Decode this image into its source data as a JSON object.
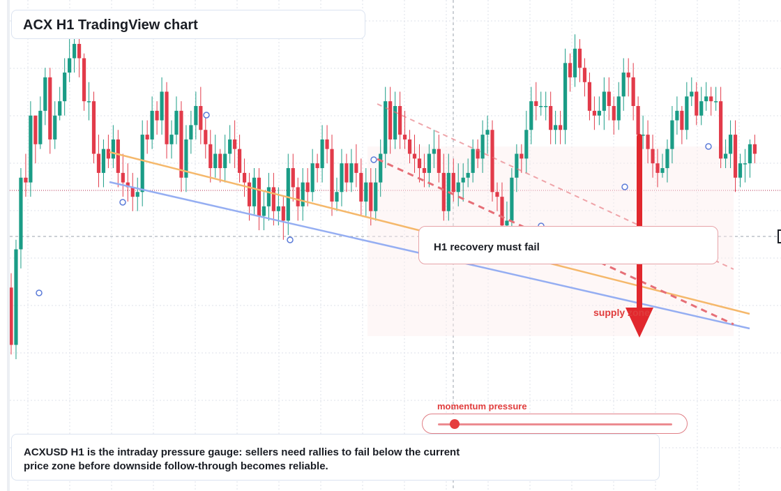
{
  "header": {
    "title": "ACX H1 TradingView chart"
  },
  "callout": {
    "text": "H1 recovery must fail"
  },
  "zone_label": "supply zone",
  "gauge": {
    "label": "momentum pressure",
    "level": 0.07
  },
  "note": {
    "text": "ACXUSD H1 is the intraday pressure gauge: sellers need rallies to fail below the current price zone before downside follow-through becomes reliable."
  },
  "colors": {
    "up": "#1a9c86",
    "down": "#e23b4a",
    "trend_orange": "#f5b86b",
    "trend_blue": "#95aef2",
    "trend_red": "#e66e76",
    "arrow": "#e1272d"
  },
  "chart_data": {
    "type": "candlestick",
    "title": "ACX H1 TradingView chart",
    "symbol": "ACXUSD",
    "timeframe": "H1",
    "ylim": [
      0,
      100
    ],
    "annotations": [
      "H1 recovery must fail",
      "supply zone",
      "momentum pressure"
    ],
    "candles": {
      "open": [
        42,
        30,
        50,
        65,
        64,
        78,
        72,
        79,
        86,
        73,
        78,
        81,
        87,
        90,
        93,
        90,
        81,
        81,
        70,
        66,
        71,
        69,
        73,
        66,
        64,
        63,
        61,
        62,
        74,
        73,
        79,
        77,
        83,
        72,
        74,
        79,
        65,
        73,
        76,
        80,
        75,
        72,
        67,
        70,
        67,
        70,
        73,
        71,
        66,
        64,
        59,
        65,
        57,
        59,
        63,
        58,
        59,
        56,
        67,
        63,
        59,
        64,
        62,
        68,
        67,
        73,
        71,
        60,
        62,
        68,
        64,
        68,
        66,
        60,
        64,
        58,
        64,
        70,
        81,
        73,
        80,
        74,
        73,
        70,
        69,
        67,
        66,
        70,
        71,
        66,
        58,
        66,
        62,
        64,
        65,
        66,
        71,
        69,
        74,
        75,
        62,
        61,
        55,
        56,
        65,
        70,
        69,
        75,
        81,
        80,
        80,
        80,
        75,
        76,
        75,
        89,
        86,
        92,
        88,
        85,
        79,
        78,
        79,
        83,
        80,
        77,
        82,
        87,
        86,
        80,
        74,
        74,
        71,
        68,
        66,
        67,
        71,
        77,
        79,
        75,
        82,
        83,
        78,
        81,
        82,
        81,
        81,
        69,
        70,
        74,
        65,
        68,
        68,
        72
      ],
      "close": [
        30,
        50,
        65,
        64,
        78,
        72,
        79,
        86,
        73,
        78,
        81,
        87,
        90,
        93,
        90,
        81,
        81,
        70,
        66,
        71,
        69,
        73,
        66,
        64,
        63,
        61,
        62,
        74,
        73,
        79,
        77,
        83,
        72,
        74,
        79,
        65,
        73,
        76,
        80,
        75,
        72,
        67,
        70,
        67,
        70,
        73,
        71,
        66,
        64,
        59,
        65,
        57,
        59,
        63,
        58,
        59,
        56,
        67,
        63,
        59,
        64,
        62,
        68,
        67,
        73,
        71,
        60,
        62,
        68,
        64,
        68,
        66,
        60,
        64,
        58,
        64,
        70,
        81,
        73,
        80,
        74,
        73,
        70,
        69,
        67,
        66,
        70,
        71,
        66,
        58,
        66,
        62,
        64,
        65,
        66,
        71,
        69,
        74,
        75,
        62,
        61,
        55,
        56,
        65,
        70,
        69,
        75,
        81,
        80,
        80,
        80,
        75,
        76,
        75,
        89,
        86,
        92,
        88,
        85,
        79,
        78,
        79,
        83,
        80,
        77,
        82,
        87,
        86,
        80,
        74,
        74,
        71,
        68,
        66,
        67,
        71,
        77,
        79,
        75,
        82,
        83,
        78,
        81,
        82,
        81,
        81,
        69,
        70,
        74,
        65,
        68,
        68,
        72,
        70
      ],
      "high": [
        45,
        52,
        67,
        70,
        81,
        78,
        82,
        88,
        88,
        81,
        84,
        90,
        94,
        96,
        95,
        91,
        85,
        83,
        74,
        73,
        74,
        76,
        75,
        70,
        68,
        66,
        65,
        77,
        77,
        82,
        81,
        86,
        85,
        77,
        82,
        81,
        76,
        79,
        83,
        84,
        78,
        75,
        74,
        71,
        74,
        76,
        77,
        74,
        69,
        66,
        67,
        67,
        62,
        66,
        66,
        63,
        61,
        70,
        70,
        65,
        67,
        67,
        71,
        70,
        76,
        76,
        74,
        65,
        71,
        70,
        71,
        72,
        69,
        67,
        67,
        67,
        73,
        84,
        84,
        83,
        83,
        79,
        75,
        74,
        72,
        70,
        72,
        75,
        74,
        70,
        70,
        69,
        68,
        68,
        69,
        73,
        73,
        77,
        78,
        77,
        64,
        64,
        60,
        67,
        72,
        72,
        79,
        84,
        85,
        83,
        83,
        83,
        79,
        79,
        92,
        91,
        95,
        94,
        90,
        87,
        82,
        82,
        86,
        86,
        82,
        85,
        90,
        90,
        89,
        82,
        78,
        77,
        74,
        71,
        70,
        73,
        80,
        82,
        80,
        85,
        86,
        85,
        84,
        85,
        84,
        84,
        84,
        73,
        77,
        77,
        70,
        71,
        73,
        74
      ],
      "low": [
        28,
        27,
        46,
        61,
        61,
        68,
        71,
        76,
        70,
        71,
        77,
        78,
        85,
        87,
        86,
        79,
        77,
        68,
        63,
        63,
        67,
        67,
        63,
        61,
        60,
        58,
        58,
        59,
        70,
        71,
        74,
        74,
        69,
        69,
        72,
        62,
        62,
        70,
        73,
        72,
        69,
        64,
        65,
        64,
        64,
        68,
        67,
        64,
        61,
        56,
        57,
        54,
        54,
        56,
        55,
        55,
        52,
        53,
        60,
        56,
        56,
        59,
        60,
        64,
        64,
        68,
        57,
        58,
        59,
        62,
        62,
        63,
        57,
        57,
        55,
        56,
        61,
        67,
        70,
        71,
        71,
        71,
        68,
        66,
        64,
        63,
        63,
        67,
        64,
        56,
        56,
        60,
        59,
        60,
        63,
        64,
        67,
        66,
        70,
        60,
        58,
        53,
        51,
        54,
        62,
        66,
        66,
        72,
        77,
        78,
        77,
        72,
        72,
        72,
        72,
        83,
        84,
        85,
        82,
        77,
        75,
        76,
        75,
        77,
        74,
        75,
        79,
        82,
        77,
        71,
        71,
        68,
        65,
        63,
        65,
        64,
        68,
        74,
        72,
        73,
        80,
        76,
        76,
        79,
        78,
        79,
        67,
        67,
        67,
        62,
        63,
        64,
        65,
        68
      ]
    },
    "trendlines": [
      {
        "kind": "solid",
        "color_key": "trend_orange"
      },
      {
        "kind": "solid",
        "color_key": "trend_blue"
      },
      {
        "kind": "dashed",
        "color_key": "trend_red"
      }
    ],
    "crosshair": true,
    "grid": true
  }
}
